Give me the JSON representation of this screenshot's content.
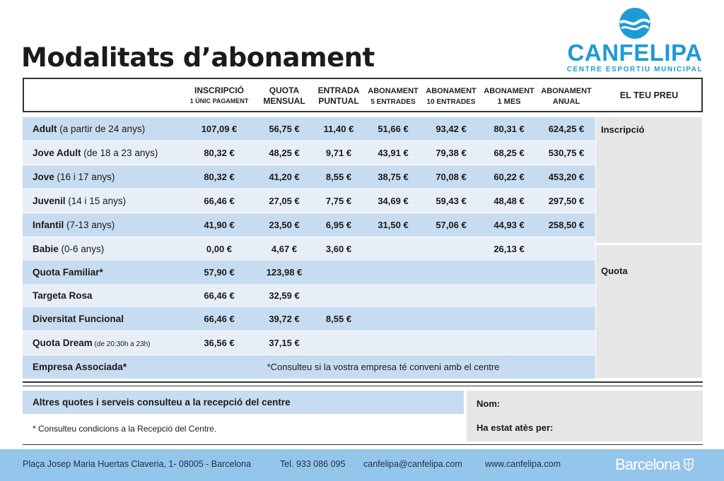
{
  "title": "Modalitats d’abonament",
  "logo": {
    "name": "CANFELIPA",
    "subtitle": "CENTRE ESPORTIU MUNICIPAL",
    "icon": "swim-wave-icon",
    "color": "#1e9ad6"
  },
  "columns": [
    {
      "top": "INSCRIPCIÓ",
      "bottom": "1 ÚNIC PAGAMENT"
    },
    {
      "top": "QUOTA",
      "bottom": "MENSUAL"
    },
    {
      "top": "ENTRADA",
      "bottom": "PUNTUAL"
    },
    {
      "top": "ABONAMENT",
      "bottom": "5 ENTRADES"
    },
    {
      "top": "ABONAMENT",
      "bottom": "10 ENTRADES"
    },
    {
      "top": "ABONAMENT",
      "bottom": "1 MES"
    },
    {
      "top": "ABONAMENT",
      "bottom": "ANUAL"
    }
  ],
  "your_price_header": "EL TEU PREU",
  "rows": [
    {
      "name": "Adult",
      "detail": " (a partir de 24 anys)",
      "values": [
        "107,09 €",
        "56,75 €",
        "11,40 €",
        "51,66 €",
        "93,42 €",
        "80,31 €",
        "624,25 €"
      ]
    },
    {
      "name": "Jove Adult",
      "detail": " (de 18 a 23 anys)",
      "values": [
        "80,32 €",
        "48,25 €",
        "9,71 €",
        "43,91 €",
        "79,38 €",
        "68,25 €",
        "530,75 €"
      ]
    },
    {
      "name": "Jove",
      "detail": " (16 i 17 anys)",
      "values": [
        "80,32 €",
        "41,20 €",
        "8,55 €",
        "38,75 €",
        "70,08 €",
        "60,22 €",
        "453,20 €"
      ]
    },
    {
      "name": "Juvenil",
      "detail": " (14 i 15 anys)",
      "values": [
        "66,46 €",
        "27,05 €",
        "7,75 €",
        "34,69 €",
        "59,43 €",
        "48,48 €",
        "297,50 €"
      ]
    },
    {
      "name": "Infantil",
      "detail": " (7-13 anys)",
      "values": [
        "41,90 €",
        "23,50 €",
        "6,95 €",
        "31,50 €",
        "57,06 €",
        "44,93 €",
        "258,50 €"
      ]
    },
    {
      "name": "Babie",
      "detail": " (0-6 anys)",
      "values": [
        "0,00 €",
        "4,67 €",
        "3,60 €",
        "",
        "",
        "26,13 €",
        ""
      ]
    },
    {
      "name": "Quota Familiar*",
      "detail": "",
      "values": [
        "57,90 €",
        "123,98 €",
        "",
        "",
        "",
        "",
        ""
      ]
    },
    {
      "name": "Targeta Rosa",
      "detail": "",
      "values": [
        "66,46 €",
        "32,59 €",
        "",
        "",
        "",
        "",
        ""
      ]
    },
    {
      "name": "Diversitat Funcional",
      "detail": "",
      "values": [
        "66,46 €",
        "39,72 €",
        "8,55 €",
        "",
        "",
        "",
        ""
      ]
    },
    {
      "name": "Quota Dream",
      "detail_small": " (de 20:30h a 23h)",
      "values": [
        "36,56 €",
        "37,15 €",
        "",
        "",
        "",
        "",
        ""
      ]
    }
  ],
  "company_row": {
    "name": "Empresa Associada*",
    "note": "*Consulteu si la vostra empresa té conveni amb el centre"
  },
  "side_labels": {
    "registration": "Inscripció",
    "fee": "Quota"
  },
  "bottom": {
    "other_fees": "Altres quotes i serveis consulteu a la recepció del centre",
    "conditions": "* Consulteu condicions a la Recepció del Centre.",
    "name_label": "Nom:",
    "attended_label": "Ha estat atès per:"
  },
  "footer": {
    "address": "Plaça Josep Maria Huertas Claveria, 1- 08005 - Barcelona",
    "phone": "Tel. 933 086 095",
    "email": "canfelipa@canfelipa.com",
    "web": "www.canfelipa.com",
    "city_logo": "Barcelona",
    "city_logo_icon": "barcelona-shield-icon"
  }
}
